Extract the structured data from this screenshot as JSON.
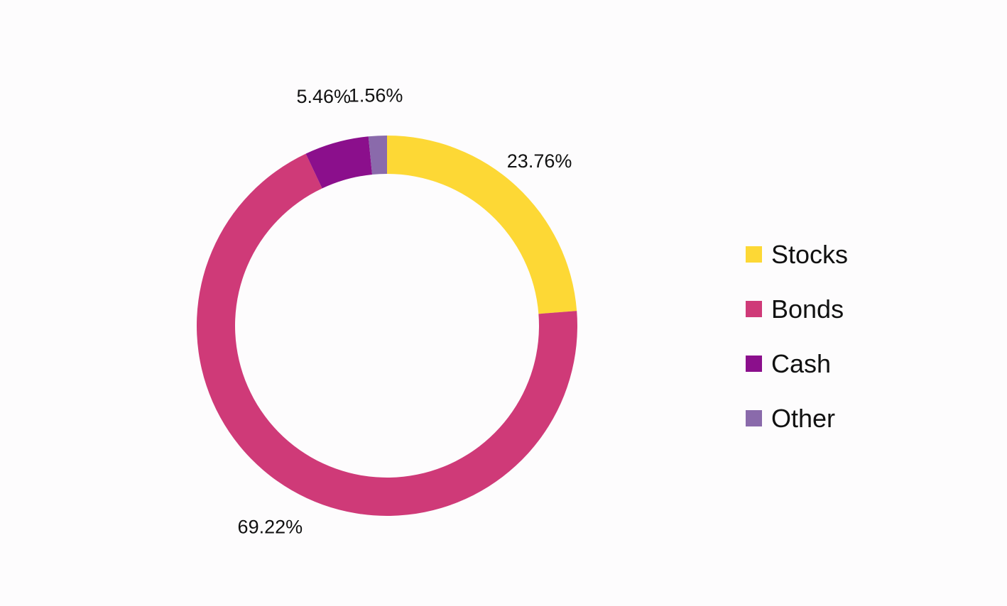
{
  "chart_data": {
    "type": "pie",
    "variant": "donut",
    "title": "",
    "categories": [
      "Stocks",
      "Bonds",
      "Cash",
      "Other"
    ],
    "values": [
      23.76,
      69.22,
      5.46,
      1.56
    ],
    "value_labels": [
      "23.76%",
      "69.22%",
      "5.46%",
      "1.56%"
    ],
    "colors": [
      "#fdd835",
      "#cf3a78",
      "#8b0f8c",
      "#8a6aab"
    ],
    "start_angle_deg": 0,
    "direction": "clockwise",
    "legend_position": "right"
  }
}
